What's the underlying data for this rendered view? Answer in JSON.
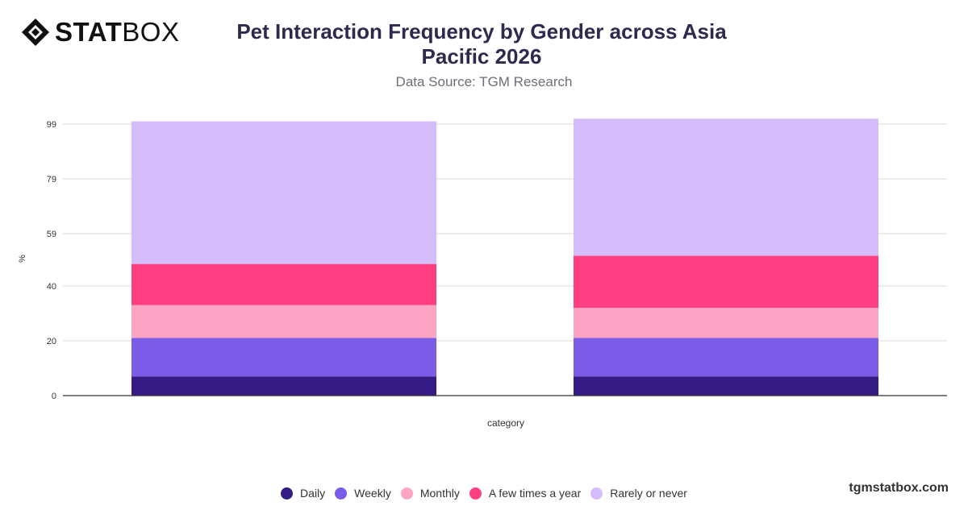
{
  "brand": {
    "bold": "STAT",
    "light": "BOX",
    "icon": "diamond-logo-icon"
  },
  "header": {
    "title_line1": "Pet Interaction Frequency by Gender across Asia",
    "title_line2": "Pacific 2026",
    "subtitle": "Data Source: TGM Research"
  },
  "watermark": "tgmstatbox.com",
  "chart_data": {
    "type": "bar",
    "stacked": true,
    "title": "Pet Interaction Frequency by Gender across Asia Pacific 2026",
    "subtitle": "Data Source: TGM Research",
    "xlabel": "category",
    "ylabel": "%",
    "ylim": [
      0,
      99
    ],
    "yticks": [
      "0",
      "20",
      "40",
      "59",
      "79",
      "99"
    ],
    "ytick_values": [
      0,
      20,
      40,
      59,
      79,
      99
    ],
    "grid": true,
    "legend_position": "bottom",
    "categories": [
      "",
      ""
    ],
    "series": [
      {
        "name": "Daily",
        "color": "#341c84",
        "values": [
          7,
          7
        ]
      },
      {
        "name": "Weekly",
        "color": "#7b5ce8",
        "values": [
          14,
          14
        ]
      },
      {
        "name": "Monthly",
        "color": "#fda4c4",
        "values": [
          12,
          11
        ]
      },
      {
        "name": "A few times a year",
        "color": "#ff3f82",
        "values": [
          15,
          19
        ]
      },
      {
        "name": "Rarely or never",
        "color": "#d4bdfa",
        "values": [
          52,
          50
        ]
      }
    ]
  }
}
